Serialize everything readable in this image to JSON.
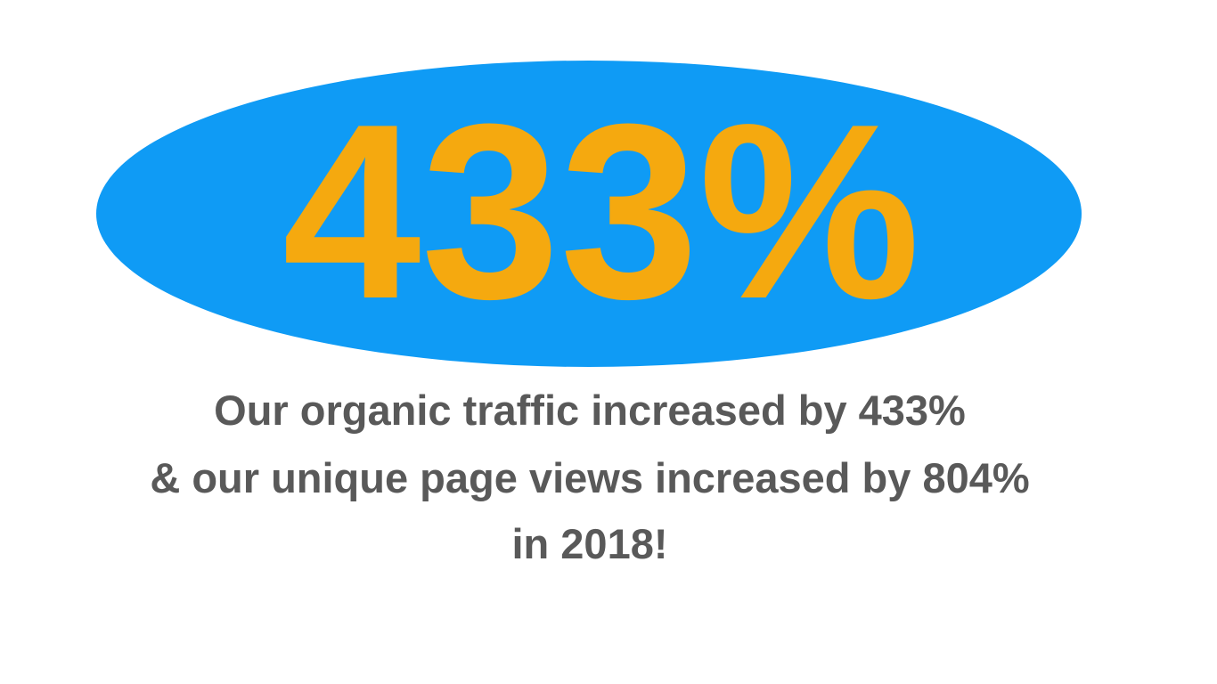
{
  "headline": "433%",
  "caption": [
    "Our organic traffic increased by 433%",
    "& our unique page views increased by 804%",
    "in 2018!"
  ]
}
